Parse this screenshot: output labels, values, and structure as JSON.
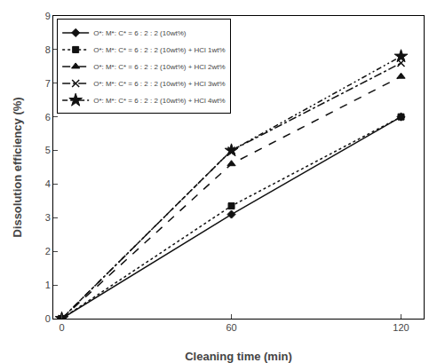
{
  "chart_data": {
    "type": "line",
    "x": [
      0,
      60,
      120
    ],
    "series": [
      {
        "name": "O*: M*: C* = 6 : 2 : 2 (10wt%)",
        "values": [
          0,
          3.1,
          6.0
        ],
        "color": "#111111",
        "marker": "diamond",
        "line_style": "solid"
      },
      {
        "name": "O*: M*: C* = 6 : 2 : 2 (10wt%) + HCl 1wt%",
        "values": [
          0,
          3.35,
          6.0
        ],
        "color": "#111111",
        "marker": "square",
        "line_style": "dotted"
      },
      {
        "name": "O*: M*: C* = 6 : 2 : 2 (10wt%) + HCl 2wt%",
        "values": [
          0,
          4.6,
          7.2
        ],
        "color": "#111111",
        "marker": "triangle-up",
        "line_style": "dashed"
      },
      {
        "name": "O*: M*: C* = 6 : 2 : 2 (10wt%) + HCl 3wt%",
        "values": [
          0,
          5.0,
          7.6
        ],
        "color": "#111111",
        "marker": "x",
        "line_style": "dashdot"
      },
      {
        "name": "O*: M*: C* = 6 : 2 : 2 (10wt%) + HCl 4wt%",
        "values": [
          0,
          5.0,
          7.8
        ],
        "color": "#111111",
        "marker": "star",
        "line_style": "dashdotdot"
      }
    ],
    "xlabel": "Cleaning time (min)",
    "ylabel": "Dissolution efficiency (%)",
    "xlim": [
      -3,
      128
    ],
    "ylim": [
      0,
      9
    ],
    "xticks": [
      0,
      60,
      120
    ],
    "yticks": [
      0,
      1,
      2,
      3,
      4,
      5,
      6,
      7,
      8,
      9
    ],
    "legend": "upper left",
    "grid": false
  }
}
